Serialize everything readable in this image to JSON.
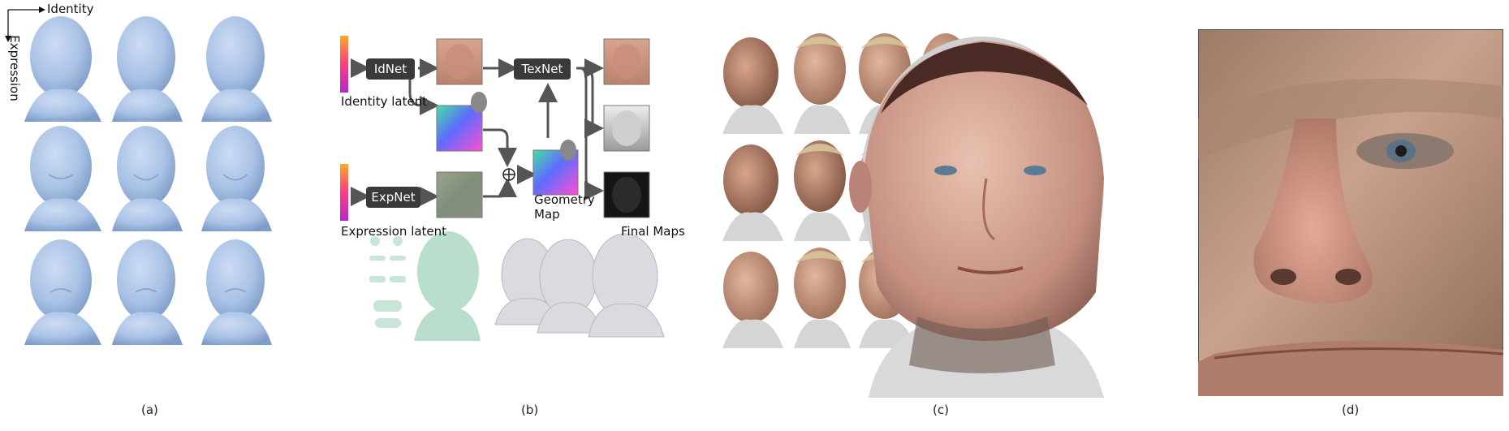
{
  "panel_a": {
    "caption": "(a)",
    "axis_identity": "Identity",
    "axis_expression": "Expression"
  },
  "panel_b": {
    "caption": "(b)",
    "idnet_label": "IdNet",
    "expnet_label": "ExpNet",
    "texnet_label": "TexNet",
    "identity_latent": "Identity latent",
    "expression_latent": "Expression latent",
    "geometry_map": "Geometry Map",
    "final_maps": "Final Maps",
    "sum_symbol": "⊕"
  },
  "panel_c": {
    "caption": "(c)"
  },
  "panel_d": {
    "caption": "(d)"
  },
  "colors": {
    "head_blue": "#a9c2e6",
    "net_box": "#3a3a3a",
    "arrow": "#555555",
    "mint_head": "#b9decb",
    "grey_head": "#d9dbe0",
    "skin": "#c8998a"
  }
}
